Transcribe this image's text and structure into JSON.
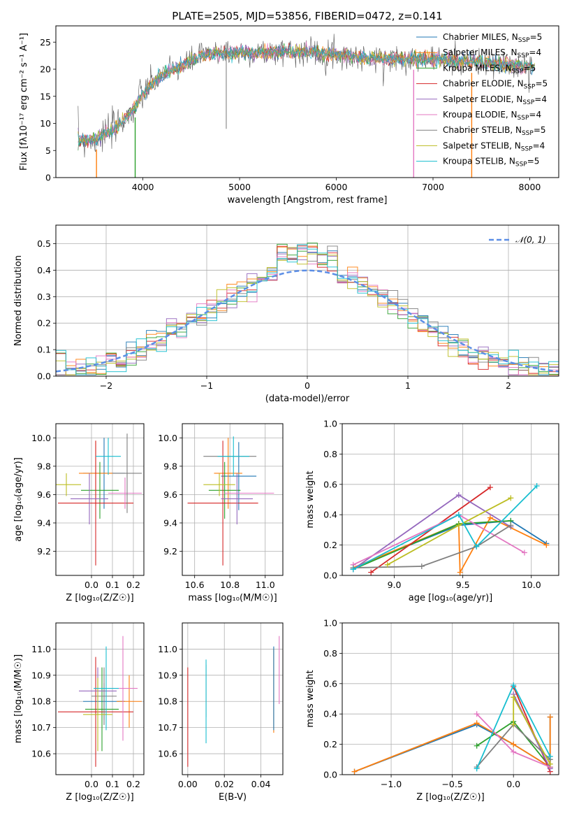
{
  "page_title": "PLATE=2505, MJD=53856, FIBERID=0472, z=0.141",
  "colors": {
    "Chabrier MILES": "#1f77b4",
    "Salpeter MILES": "#ff7f0e",
    "Kroupa MILES": "#2ca02c",
    "Chabrier ELODIE": "#d62728",
    "Salpeter ELODIE": "#9467bd",
    "Kroupa ELODIE": "#e377c2",
    "Chabrier STELIB": "#7f7f7f",
    "Salpeter STELIB": "#bcbd22",
    "Kroupa STELIB": "#17becf",
    "gauss": "#5b8ee6",
    "obs": "#555555"
  },
  "chart_data": [
    {
      "id": "spectrum",
      "type": "line",
      "title": "PLATE=2505, MJD=53856, FIBERID=0472, z=0.141",
      "xlabel": "wavelength [Angstrom, rest frame]",
      "ylabel": "Flux [fλ10⁻¹⁷ erg cm⁻² s⁻¹ A⁻¹]",
      "xlim": [
        3100,
        8300
      ],
      "ylim": [
        0,
        28
      ],
      "xticks": [
        4000,
        5000,
        6000,
        7000,
        8000
      ],
      "yticks": [
        0,
        5,
        10,
        15,
        20,
        25
      ],
      "grid": false,
      "legend_position": "top-right",
      "series": [
        {
          "name": "Chabrier MILES, N_SSP=5",
          "legend": "Chabrier MILES, N",
          "sub": "SSP",
          "suffix": "=5"
        },
        {
          "name": "Salpeter MILES, N_SSP=4",
          "legend": "Salpeter MILES, N",
          "sub": "SSP",
          "suffix": "=4"
        },
        {
          "name": "Kroupa MILES, N_SSP=5",
          "legend": "Kroupa MILES, N",
          "sub": "SSP",
          "suffix": "=5"
        },
        {
          "name": "Chabrier ELODIE, N_SSP=5",
          "legend": "Chabrier ELODIE, N",
          "sub": "SSP",
          "suffix": "=5"
        },
        {
          "name": "Salpeter ELODIE, N_SSP=4",
          "legend": "Salpeter ELODIE, N",
          "sub": "SSP",
          "suffix": "=4"
        },
        {
          "name": "Kroupa ELODIE, N_SSP=4",
          "legend": "Kroupa ELODIE, N",
          "sub": "SSP",
          "suffix": "=4"
        },
        {
          "name": "Chabrier STELIB, N_SSP=5",
          "legend": "Chabrier STELIB, N",
          "sub": "SSP",
          "suffix": "=5"
        },
        {
          "name": "Salpeter STELIB, N_SSP=4",
          "legend": "Salpeter STELIB, N",
          "sub": "SSP",
          "suffix": "=4"
        },
        {
          "name": "Kroupa STELIB, N_SSP=5",
          "legend": "Kroupa STELIB, N",
          "sub": "SSP",
          "suffix": "=5"
        }
      ],
      "continuum": {
        "x": [
          3330,
          3500,
          3700,
          3800,
          3900,
          4000,
          4100,
          4200,
          4400,
          4600,
          4800,
          5000,
          5200,
          5500,
          5800,
          6000,
          6300,
          6600,
          7000,
          7300,
          7600,
          8000,
          8050
        ],
        "y": [
          7.0,
          7.0,
          8.8,
          10.8,
          12.5,
          15.5,
          17.3,
          19.0,
          20.5,
          22.5,
          23.0,
          23.0,
          23.0,
          23.3,
          23.1,
          22.8,
          22.0,
          22.0,
          21.8,
          21.5,
          21.0,
          20.5,
          20.3
        ]
      },
      "dropouts": [
        {
          "x": 3520,
          "color_series": 1
        },
        {
          "x": 3920,
          "color_series": 2
        },
        {
          "x": 6800,
          "color_series": 5
        },
        {
          "x": 7400,
          "color_series": 1
        }
      ]
    },
    {
      "id": "residuals",
      "type": "step",
      "xlabel": "(data-model)/error",
      "ylabel": "Normed distribution",
      "xlim": [
        -2.5,
        2.5
      ],
      "ylim": [
        0,
        0.57
      ],
      "xticks": [
        -2,
        -1,
        0,
        1,
        2
      ],
      "yticks": [
        0.0,
        0.1,
        0.2,
        0.3,
        0.4,
        0.5
      ],
      "grid": true,
      "legend": "𝒩(0, 1)",
      "legend_position": "top-right",
      "bin_width": 0.1
    },
    {
      "id": "z-age",
      "type": "errorbar",
      "xlabel": "Z [log₁₀(Z/Z☉)]",
      "ylabel": "age  [log₁₀(age/yr)]",
      "xlim": [
        -0.17,
        0.25
      ],
      "ylim": [
        9.03,
        10.1
      ],
      "xticks": [
        0.0,
        0.1,
        0.2
      ],
      "yticks": [
        9.2,
        9.4,
        9.6,
        9.8,
        10.0
      ],
      "grid": true,
      "points": [
        {
          "series": 0,
          "x": 0.06,
          "y": 9.75,
          "xerr": 0.1,
          "yerr": 0.25
        },
        {
          "series": 1,
          "x": 0.02,
          "y": 9.75,
          "xerr": 0.08,
          "yerr": 0.23
        },
        {
          "series": 2,
          "x": 0.04,
          "y": 9.63,
          "xerr": 0.09,
          "yerr": 0.2
        },
        {
          "series": 3,
          "x": 0.02,
          "y": 9.54,
          "xerr": 0.18,
          "yerr": 0.44
        },
        {
          "series": 4,
          "x": -0.01,
          "y": 9.57,
          "xerr": 0.09,
          "yerr": 0.18
        },
        {
          "series": 5,
          "x": 0.16,
          "y": 9.61,
          "xerr": 0.08,
          "yerr": 0.11
        },
        {
          "series": 6,
          "x": 0.17,
          "y": 9.75,
          "xerr": 0.07,
          "yerr": 0.28
        },
        {
          "series": 7,
          "x": -0.12,
          "y": 9.67,
          "xerr": 0.07,
          "yerr": 0.08
        },
        {
          "series": 8,
          "x": 0.08,
          "y": 9.87,
          "xerr": 0.06,
          "yerr": 0.13
        }
      ]
    },
    {
      "id": "mass-age",
      "type": "errorbar",
      "xlabel": "mass [log₁₀(M/M☉)]",
      "ylabel": "",
      "xlim": [
        10.53,
        11.1
      ],
      "ylim": [
        9.03,
        10.1
      ],
      "xticks": [
        10.6,
        10.8,
        11.0
      ],
      "yticks": [
        9.2,
        9.4,
        9.6,
        9.8,
        10.0
      ],
      "grid": true,
      "points": [
        {
          "series": 0,
          "x": 10.85,
          "y": 9.73,
          "xerr": 0.1,
          "yerr": 0.24
        },
        {
          "series": 1,
          "x": 10.79,
          "y": 9.75,
          "xerr": 0.08,
          "yerr": 0.25
        },
        {
          "series": 2,
          "x": 10.77,
          "y": 9.63,
          "xerr": 0.09,
          "yerr": 0.2
        },
        {
          "series": 3,
          "x": 10.76,
          "y": 9.54,
          "xerr": 0.2,
          "yerr": 0.44
        },
        {
          "series": 4,
          "x": 10.84,
          "y": 9.57,
          "xerr": 0.09,
          "yerr": 0.18
        },
        {
          "series": 5,
          "x": 10.91,
          "y": 9.61,
          "xerr": 0.14,
          "yerr": 0.0
        },
        {
          "series": 6,
          "x": 10.8,
          "y": 9.87,
          "xerr": 0.15,
          "yerr": 0.0
        },
        {
          "series": 7,
          "x": 10.74,
          "y": 9.67,
          "xerr": 0.09,
          "yerr": 0.08
        },
        {
          "series": 8,
          "x": 10.82,
          "y": 9.87,
          "xerr": 0.09,
          "yerr": 0.14
        }
      ]
    },
    {
      "id": "weights-age",
      "type": "line",
      "xlabel": "age  [log₁₀(age/yr)]",
      "ylabel": "mass weight",
      "xlim": [
        8.62,
        10.2
      ],
      "ylim": [
        0,
        1.0
      ],
      "xticks": [
        9.0,
        9.5,
        10.0
      ],
      "yticks": [
        0.0,
        0.2,
        0.4,
        0.6,
        0.8,
        1.0
      ],
      "grid": true,
      "series": [
        {
          "series": 0,
          "x": [
            8.7,
            9.47,
            9.85,
            10.11
          ],
          "y": [
            0.05,
            0.33,
            0.36,
            0.21
          ]
        },
        {
          "series": 1,
          "x": [
            8.7,
            9.47,
            9.48,
            9.7,
            10.11
          ],
          "y": [
            0.05,
            0.34,
            0.02,
            0.38,
            0.2
          ]
        },
        {
          "series": 2,
          "x": [
            8.7,
            9.47,
            9.85
          ],
          "y": [
            0.04,
            0.34,
            0.36
          ]
        },
        {
          "series": 3,
          "x": [
            8.83,
            9.7
          ],
          "y": [
            0.02,
            0.58
          ]
        },
        {
          "series": 4,
          "x": [
            8.7,
            9.47,
            9.85
          ],
          "y": [
            0.04,
            0.53,
            0.32
          ]
        },
        {
          "series": 5,
          "x": [
            8.7,
            9.47,
            9.95
          ],
          "y": [
            0.07,
            0.4,
            0.15
          ]
        },
        {
          "series": 6,
          "x": [
            8.7,
            9.2,
            9.6,
            9.85
          ],
          "y": [
            0.05,
            0.06,
            0.19,
            0.33
          ]
        },
        {
          "series": 7,
          "x": [
            8.95,
            9.47,
            9.85
          ],
          "y": [
            0.07,
            0.33,
            0.51
          ]
        },
        {
          "series": 8,
          "x": [
            8.7,
            9.47,
            9.6,
            10.04
          ],
          "y": [
            0.04,
            0.4,
            0.19,
            0.59
          ]
        }
      ]
    },
    {
      "id": "z-mass",
      "type": "errorbar",
      "xlabel": "Z [log₁₀(Z/Z☉)]",
      "ylabel": "mass [log₁₀(M/M☉)]",
      "xlim": [
        -0.17,
        0.25
      ],
      "ylim": [
        10.52,
        11.1
      ],
      "xticks": [
        0.0,
        0.1,
        0.2
      ],
      "yticks": [
        10.6,
        10.7,
        10.8,
        10.9,
        11.0
      ],
      "grid": true,
      "points": [
        {
          "series": 0,
          "x": 0.06,
          "y": 10.8,
          "xerr": 0.1,
          "yerr": 0.07
        },
        {
          "series": 1,
          "x": 0.18,
          "y": 10.8,
          "xerr": 0.06,
          "yerr": 0.1
        },
        {
          "series": 2,
          "x": 0.05,
          "y": 10.77,
          "xerr": 0.08,
          "yerr": 0.16
        },
        {
          "series": 3,
          "x": 0.02,
          "y": 10.76,
          "xerr": 0.18,
          "yerr": 0.21
        },
        {
          "series": 4,
          "x": 0.03,
          "y": 10.84,
          "xerr": 0.09,
          "yerr": 0.09
        },
        {
          "series": 5,
          "x": 0.15,
          "y": 10.85,
          "xerr": 0.07,
          "yerr": 0.2
        },
        {
          "series": 6,
          "x": 0.06,
          "y": 10.82,
          "xerr": 0.06,
          "yerr": 0.11
        },
        {
          "series": 7,
          "x": 0.03,
          "y": 10.75,
          "xerr": 0.07,
          "yerr": 0.14
        },
        {
          "series": 8,
          "x": 0.07,
          "y": 10.85,
          "xerr": 0.06,
          "yerr": 0.16
        }
      ]
    },
    {
      "id": "ebv-mass",
      "type": "errorbar",
      "xlabel": "E(B-V)",
      "ylabel": "",
      "xlim": [
        -0.003,
        0.052
      ],
      "ylim": [
        10.52,
        11.1
      ],
      "xticks": [
        0.0,
        0.02,
        0.04
      ],
      "yticks": [
        10.6,
        10.7,
        10.8,
        10.9,
        11.0
      ],
      "grid": true,
      "points": [
        {
          "series": 3,
          "x": 0.0,
          "y": 10.74,
          "xerr": 0,
          "yerr": 0.19
        },
        {
          "series": 6,
          "x": 0.01,
          "y": 10.84,
          "xerr": 0,
          "yerr": 0.1
        },
        {
          "series": 8,
          "x": 0.01,
          "y": 10.8,
          "xerr": 0,
          "yerr": 0.16
        },
        {
          "series": 1,
          "x": 0.047,
          "y": 10.84,
          "xerr": 0,
          "yerr": 0.16
        },
        {
          "series": 0,
          "x": 0.047,
          "y": 10.85,
          "xerr": 0,
          "yerr": 0.16
        },
        {
          "series": 5,
          "x": 0.05,
          "y": 10.92,
          "xerr": 0,
          "yerr": 0.13
        }
      ]
    },
    {
      "id": "weights-z",
      "type": "line",
      "xlabel": "Z [log₁₀(Z/Z☉)]",
      "ylabel": "mass weight",
      "xlim": [
        -1.4,
        0.37
      ],
      "ylim": [
        0,
        1.0
      ],
      "xticks": [
        -1.0,
        -0.5,
        0.0
      ],
      "yticks": [
        0.0,
        0.2,
        0.4,
        0.6,
        0.8,
        1.0
      ],
      "grid": true,
      "series": [
        {
          "series": 0,
          "x": [
            -1.3,
            -0.3,
            0.0,
            0.3,
            0.3
          ],
          "y": [
            0.02,
            0.33,
            0.2,
            0.05,
            0.38
          ]
        },
        {
          "series": 1,
          "x": [
            -1.3,
            -0.3,
            0.0,
            0.3,
            0.3
          ],
          "y": [
            0.02,
            0.34,
            0.2,
            0.05,
            0.38
          ]
        },
        {
          "series": 2,
          "x": [
            -0.3,
            0.0,
            0.3
          ],
          "y": [
            0.19,
            0.35,
            0.05
          ]
        },
        {
          "series": 3,
          "x": [
            0.0,
            0.3
          ],
          "y": [
            0.58,
            0.02
          ]
        },
        {
          "series": 4,
          "x": [
            0.0,
            0.3
          ],
          "y": [
            0.53,
            0.04
          ]
        },
        {
          "series": 5,
          "x": [
            -0.3,
            0.0,
            0.3
          ],
          "y": [
            0.4,
            0.15,
            0.05
          ]
        },
        {
          "series": 6,
          "x": [
            -0.3,
            0.0,
            0.3
          ],
          "y": [
            0.05,
            0.33,
            0.1
          ]
        },
        {
          "series": 7,
          "x": [
            0.0,
            0.0,
            0.3
          ],
          "y": [
            0.33,
            0.51,
            0.07
          ]
        },
        {
          "series": 8,
          "x": [
            -0.3,
            0.0,
            0.3
          ],
          "y": [
            0.04,
            0.59,
            0.12
          ]
        }
      ]
    }
  ]
}
